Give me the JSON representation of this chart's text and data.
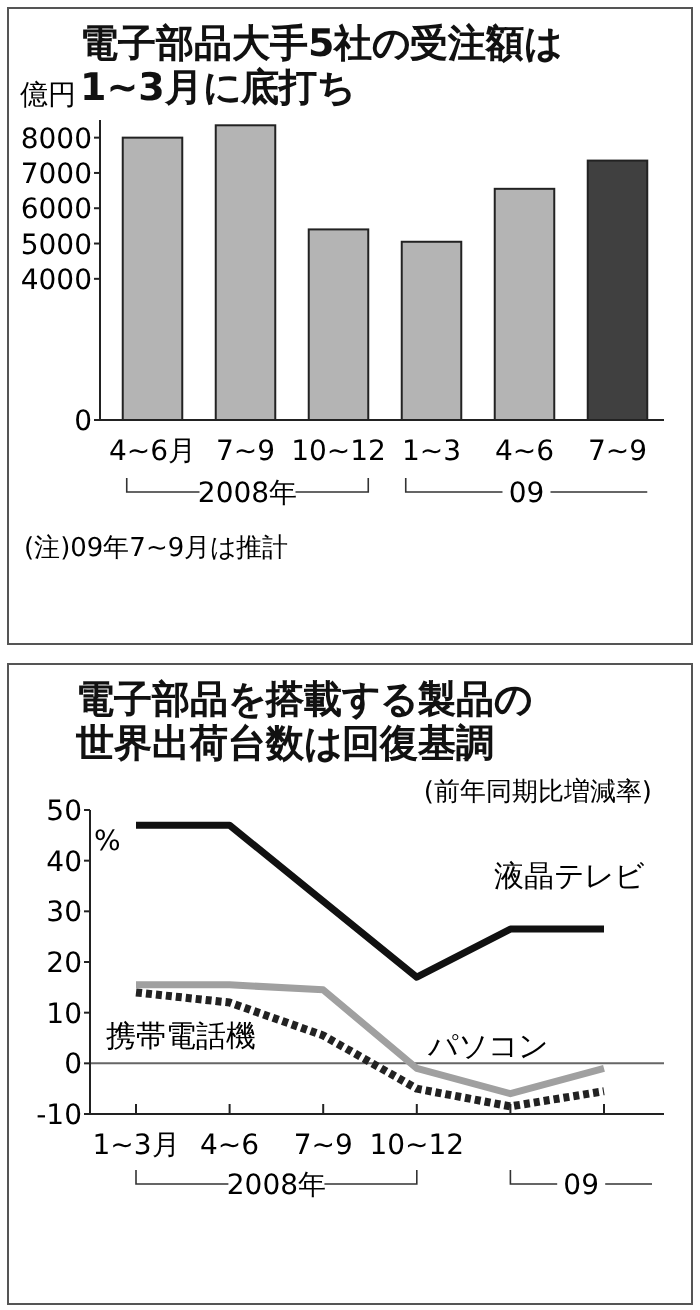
{
  "chart_data": [
    {
      "type": "bar",
      "title": "電子部品大手5社の受注額は1~3月に底打ち",
      "ylabel": "億円",
      "categories": [
        "4~6月",
        "7~9",
        "10~12",
        "1~3",
        "4~6",
        "7~9"
      ],
      "values": [
        8000,
        8350,
        5400,
        5050,
        6550,
        7350
      ],
      "colors": [
        "#b4b4b4",
        "#b4b4b4",
        "#b4b4b4",
        "#b4b4b4",
        "#b4b4b4",
        "#404040"
      ],
      "ylim": [
        0,
        8500
      ],
      "yticks": [
        0,
        4000,
        5000,
        6000,
        7000,
        8000
      ],
      "grid": false,
      "annotations": [
        "2008年",
        "09",
        "(注)09年7~9月は推計"
      ]
    },
    {
      "type": "line",
      "title": "電子部品を搭載する製品の世界出荷台数は回復基調",
      "subtitle": "(前年同期比増減率)",
      "ylabel": "%",
      "categories": [
        "1~3月",
        "4~6",
        "7~9",
        "10~12",
        null,
        null
      ],
      "series": [
        {
          "name": "液晶テレビ",
          "color": "#111111",
          "values": [
            47,
            47,
            32,
            17,
            26.5,
            26.5
          ]
        },
        {
          "name": "パソコン",
          "color": "#a0a0a0",
          "values": [
            15.5,
            15.5,
            14.5,
            -1,
            -6,
            -1
          ]
        },
        {
          "name": "携帯電話機",
          "color": "#222222",
          "line_style": "dotted",
          "values": [
            14,
            12,
            5.5,
            -5,
            -8.5,
            -5.5
          ]
        }
      ],
      "ylim": [
        -10,
        50
      ],
      "yticks": [
        50,
        40,
        30,
        20,
        10,
        0,
        -10
      ],
      "grid": false,
      "marker": "none",
      "ref_lines": [
        {
          "axis": "y",
          "value": 0,
          "color": "#666666"
        }
      ],
      "annotations": [
        "2008年",
        "09"
      ]
    }
  ]
}
